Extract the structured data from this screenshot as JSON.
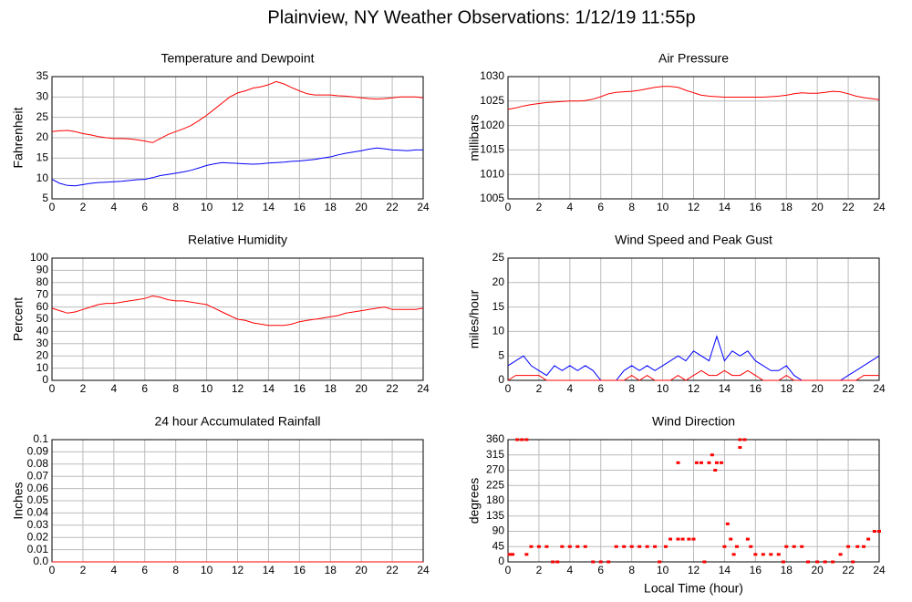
{
  "title": "Plainview, NY Weather Observations: 1/12/19 11:55p",
  "chart_data": [
    {
      "type": "line",
      "title": "Temperature and Dewpoint",
      "ylabel": "Fahrenheit",
      "x": [
        0,
        0.5,
        1,
        1.5,
        2,
        2.5,
        3,
        3.5,
        4,
        4.5,
        5,
        5.5,
        6,
        6.5,
        7,
        7.5,
        8,
        8.5,
        9,
        9.5,
        10,
        10.5,
        11,
        11.5,
        12,
        12.5,
        13,
        13.5,
        14,
        14.5,
        15,
        15.5,
        16,
        16.5,
        17,
        17.5,
        18,
        18.5,
        19,
        19.5,
        20,
        20.5,
        21,
        21.5,
        22,
        22.5,
        23,
        23.5,
        24
      ],
      "series": [
        {
          "color": "#ff0000",
          "values": [
            21.5,
            21.7,
            21.8,
            21.5,
            21,
            20.7,
            20.3,
            20,
            19.8,
            19.8,
            19.7,
            19.5,
            19.2,
            18.8,
            19.8,
            20.8,
            21.5,
            22.2,
            23,
            24.2,
            25.5,
            27,
            28.5,
            30,
            31,
            31.5,
            32.2,
            32.5,
            33,
            33.8,
            33.2,
            32.3,
            31.5,
            30.8,
            30.5,
            30.5,
            30.5,
            30.3,
            30.2,
            30,
            29.8,
            29.6,
            29.5,
            29.6,
            29.8,
            30,
            30,
            30,
            29.8
          ]
        },
        {
          "color": "#0000ff",
          "values": [
            9.8,
            8.8,
            8.3,
            8.2,
            8.5,
            8.8,
            9,
            9.1,
            9.2,
            9.3,
            9.5,
            9.7,
            9.8,
            10.2,
            10.7,
            11,
            11.3,
            11.6,
            12,
            12.6,
            13.2,
            13.6,
            13.9,
            13.8,
            13.7,
            13.6,
            13.5,
            13.6,
            13.8,
            13.9,
            14,
            14.2,
            14.3,
            14.5,
            14.7,
            15,
            15.3,
            15.8,
            16.2,
            16.5,
            16.8,
            17.2,
            17.5,
            17.3,
            17,
            16.9,
            16.8,
            17,
            17
          ]
        }
      ],
      "xlim": [
        0,
        24
      ],
      "xticks": [
        0,
        2,
        4,
        6,
        8,
        10,
        12,
        14,
        16,
        18,
        20,
        22,
        24
      ],
      "ylim": [
        5,
        35
      ],
      "yticks": [
        5,
        10,
        15,
        20,
        25,
        30,
        35
      ],
      "grid": true
    },
    {
      "type": "line",
      "title": "Air Pressure",
      "ylabel": "millibars",
      "x": [
        0,
        0.5,
        1,
        1.5,
        2,
        2.5,
        3,
        3.5,
        4,
        4.5,
        5,
        5.5,
        6,
        6.5,
        7,
        7.5,
        8,
        8.5,
        9,
        9.5,
        10,
        10.5,
        11,
        11.5,
        12,
        12.5,
        13,
        13.5,
        14,
        14.5,
        15,
        15.5,
        16,
        16.5,
        17,
        17.5,
        18,
        18.5,
        19,
        19.5,
        20,
        20.5,
        21,
        21.5,
        22,
        22.5,
        23,
        23.5,
        24
      ],
      "series": [
        {
          "color": "#ff0000",
          "values": [
            1023.3,
            1023.6,
            1024,
            1024.3,
            1024.5,
            1024.7,
            1024.8,
            1024.9,
            1025,
            1025,
            1025.1,
            1025.4,
            1025.9,
            1026.5,
            1026.8,
            1026.9,
            1027,
            1027.2,
            1027.5,
            1027.8,
            1028,
            1028,
            1027.8,
            1027.2,
            1026.7,
            1026.2,
            1026,
            1025.9,
            1025.8,
            1025.8,
            1025.8,
            1025.8,
            1025.8,
            1025.8,
            1025.9,
            1026,
            1026.2,
            1026.5,
            1026.7,
            1026.6,
            1026.6,
            1026.8,
            1027,
            1026.9,
            1026.5,
            1026,
            1025.7,
            1025.5,
            1025.3
          ]
        }
      ],
      "xlim": [
        0,
        24
      ],
      "xticks": [
        0,
        2,
        4,
        6,
        8,
        10,
        12,
        14,
        16,
        18,
        20,
        22,
        24
      ],
      "ylim": [
        1005,
        1030
      ],
      "yticks": [
        1005,
        1010,
        1015,
        1020,
        1025,
        1030
      ],
      "grid": true
    },
    {
      "type": "line",
      "title": "Relative Humidity",
      "ylabel": "Percent",
      "x": [
        0,
        0.5,
        1,
        1.5,
        2,
        2.5,
        3,
        3.5,
        4,
        4.5,
        5,
        5.5,
        6,
        6.5,
        7,
        7.5,
        8,
        8.5,
        9,
        9.5,
        10,
        10.5,
        11,
        11.5,
        12,
        12.5,
        13,
        13.5,
        14,
        14.5,
        15,
        15.5,
        16,
        16.5,
        17,
        17.5,
        18,
        18.5,
        19,
        19.5,
        20,
        20.5,
        21,
        21.5,
        22,
        22.5,
        23,
        23.5,
        24
      ],
      "series": [
        {
          "color": "#ff0000",
          "values": [
            59,
            57,
            55,
            56,
            58,
            60,
            62,
            63,
            63,
            64,
            65,
            66,
            67,
            69,
            68,
            66,
            65,
            65,
            64,
            63,
            62,
            59,
            56,
            53,
            50,
            49,
            47,
            46,
            45,
            45,
            45,
            46,
            48,
            49,
            50,
            51,
            52,
            53,
            55,
            56,
            57,
            58,
            59,
            60,
            58,
            58,
            58,
            58,
            59
          ]
        }
      ],
      "xlim": [
        0,
        24
      ],
      "xticks": [
        0,
        2,
        4,
        6,
        8,
        10,
        12,
        14,
        16,
        18,
        20,
        22,
        24
      ],
      "ylim": [
        0,
        100
      ],
      "yticks": [
        0,
        10,
        20,
        30,
        40,
        50,
        60,
        70,
        80,
        90,
        100
      ],
      "grid": true
    },
    {
      "type": "line",
      "title": "Wind Speed and Peak Gust",
      "ylabel": "miles/hour",
      "x": [
        0,
        0.5,
        1,
        1.5,
        2,
        2.5,
        3,
        3.5,
        4,
        4.5,
        5,
        5.5,
        6,
        6.5,
        7,
        7.5,
        8,
        8.5,
        9,
        9.5,
        10,
        10.5,
        11,
        11.5,
        12,
        12.5,
        13,
        13.5,
        14,
        14.5,
        15,
        15.5,
        16,
        16.5,
        17,
        17.5,
        18,
        18.5,
        19,
        19.5,
        20,
        20.5,
        21,
        21.5,
        22,
        22.5,
        23,
        23.5,
        24
      ],
      "series": [
        {
          "color": "#0000ff",
          "values": [
            3,
            4,
            5,
            3,
            2,
            1,
            3,
            2,
            3,
            2,
            3,
            2,
            0,
            0,
            0,
            2,
            3,
            2,
            3,
            2,
            3,
            4,
            5,
            4,
            6,
            5,
            4,
            9,
            4,
            6,
            5,
            6,
            4,
            3,
            2,
            2,
            3,
            1,
            0,
            0,
            0,
            0,
            0,
            0,
            1,
            2,
            3,
            4,
            5
          ]
        },
        {
          "color": "#ff0000",
          "values": [
            0,
            1,
            1,
            1,
            1,
            0,
            0,
            0,
            0,
            0,
            0,
            0,
            0,
            0,
            0,
            0,
            1,
            0,
            1,
            0,
            0,
            0,
            1,
            0,
            1,
            2,
            1,
            1,
            2,
            1,
            1,
            2,
            1,
            0,
            0,
            0,
            1,
            0,
            0,
            0,
            0,
            0,
            0,
            0,
            0,
            0,
            1,
            1,
            1
          ]
        }
      ],
      "xlim": [
        0,
        24
      ],
      "xticks": [
        0,
        2,
        4,
        6,
        8,
        10,
        12,
        14,
        16,
        18,
        20,
        22,
        24
      ],
      "ylim": [
        0,
        25
      ],
      "yticks": [
        0,
        5,
        10,
        15,
        20,
        25
      ],
      "grid": true
    },
    {
      "type": "line",
      "title": "24 hour Accumulated Rainfall",
      "ylabel": "Inches",
      "x": [
        0,
        24
      ],
      "series": [
        {
          "color": "#ff0000",
          "values": [
            0,
            0
          ]
        }
      ],
      "xlim": [
        0,
        24
      ],
      "xticks": [
        0,
        2,
        4,
        6,
        8,
        10,
        12,
        14,
        16,
        18,
        20,
        22,
        24
      ],
      "ylim": [
        0,
        0.1
      ],
      "yticks": [
        {
          "value": 0,
          "label": "0.0"
        },
        0.01,
        0.02,
        0.03,
        0.04,
        0.05,
        0.06,
        0.07,
        0.08,
        0.09,
        0.1
      ],
      "grid": true
    },
    {
      "type": "scatter",
      "title": "Wind Direction",
      "ylabel": "degrees",
      "xlabel": "Local Time (hour)",
      "color": "#ff0000",
      "x": [
        0.1,
        0.3,
        0.6,
        0.9,
        1.2,
        1.2,
        1.5,
        2,
        2.5,
        2.9,
        3.2,
        3.5,
        4,
        4.5,
        5,
        5.5,
        6,
        6.5,
        7,
        7.5,
        8,
        8.5,
        9,
        9.5,
        9.8,
        10.2,
        10.5,
        11,
        11,
        11.3,
        11.7,
        12,
        12.2,
        12.5,
        12.7,
        13,
        13.2,
        13.4,
        13.5,
        13.8,
        14,
        14.2,
        14.4,
        14.6,
        14.8,
        15,
        15,
        15.3,
        15.5,
        15.7,
        16,
        16.5,
        17,
        17.5,
        17.8,
        18,
        18.5,
        19,
        19.4,
        20,
        20.5,
        21,
        21.5,
        22,
        22.3,
        22.6,
        23,
        23.3,
        23.7,
        24
      ],
      "values": [
        22,
        22,
        360,
        360,
        360,
        22,
        45,
        45,
        45,
        0,
        0,
        45,
        45,
        45,
        45,
        0,
        0,
        0,
        45,
        45,
        45,
        45,
        45,
        45,
        0,
        45,
        67,
        67,
        292,
        67,
        67,
        67,
        292,
        292,
        0,
        292,
        315,
        270,
        292,
        292,
        45,
        112,
        67,
        22,
        45,
        360,
        337,
        360,
        67,
        45,
        22,
        22,
        22,
        22,
        0,
        45,
        45,
        45,
        0,
        0,
        0,
        0,
        22,
        45,
        0,
        45,
        45,
        67,
        90,
        90
      ],
      "xlim": [
        0,
        24
      ],
      "xticks": [
        0,
        2,
        4,
        6,
        8,
        10,
        12,
        14,
        16,
        18,
        20,
        22,
        24
      ],
      "ylim": [
        0,
        360
      ],
      "yticks": [
        0,
        45,
        90,
        135,
        180,
        225,
        270,
        315,
        360
      ],
      "grid": true
    }
  ]
}
